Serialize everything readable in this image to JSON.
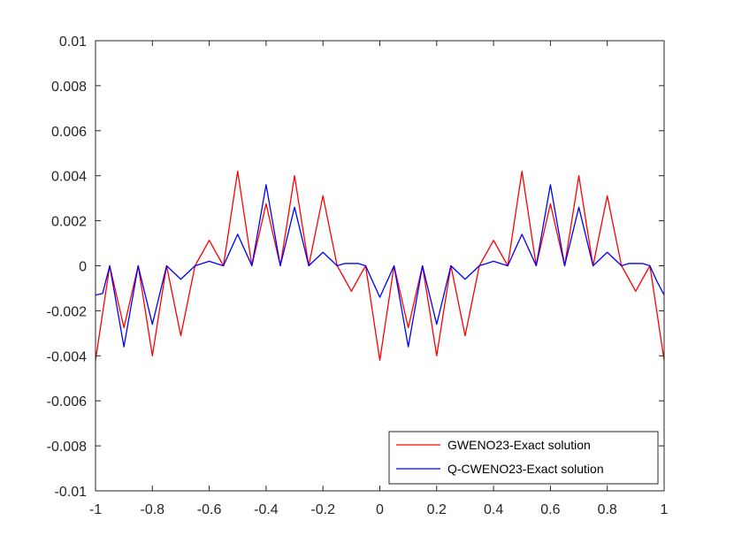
{
  "chart_data": {
    "type": "line",
    "title": "",
    "xlabel": "",
    "ylabel": "",
    "xlim": [
      -1,
      1
    ],
    "ylim": [
      -0.01,
      0.01
    ],
    "grid": false,
    "legend_position": "bottom-right",
    "x_ticks": [
      -1,
      -0.8,
      -0.6,
      -0.4,
      -0.2,
      0,
      0.2,
      0.4,
      0.6,
      0.8,
      1
    ],
    "x_tick_labels": [
      "-1",
      "-0.8",
      "-0.6",
      "-0.4",
      "-0.2",
      "0",
      "0.2",
      "0.4",
      "0.6",
      "0.8",
      "1"
    ],
    "y_ticks": [
      -0.01,
      -0.008,
      -0.006,
      -0.004,
      -0.002,
      0,
      0.002,
      0.004,
      0.006,
      0.008,
      0.01
    ],
    "y_tick_labels": [
      "-0.01",
      "-0.008",
      "-0.006",
      "-0.004",
      "-0.002",
      "0",
      "0.002",
      "0.004",
      "0.006",
      "0.008",
      "0.01"
    ],
    "series": [
      {
        "name": "GWENO23-Exact solution",
        "color": "#ff0000",
        "x": [
          -1.0,
          -0.975,
          -0.95,
          -0.925,
          -0.9,
          -0.875,
          -0.85,
          -0.825,
          -0.8,
          -0.775,
          -0.75,
          -0.725,
          -0.7,
          -0.675,
          -0.65,
          -0.625,
          -0.6,
          -0.575,
          -0.55,
          -0.525,
          -0.5,
          -0.475,
          -0.45,
          -0.425,
          -0.4,
          -0.375,
          -0.35,
          -0.325,
          -0.3,
          -0.275,
          -0.25,
          -0.225,
          -0.2,
          -0.175,
          -0.15,
          -0.125,
          -0.1,
          -0.075,
          -0.05,
          -0.025,
          0.0,
          0.025,
          0.05,
          0.075,
          0.1,
          0.125,
          0.15,
          0.175,
          0.2,
          0.225,
          0.25,
          0.275,
          0.3,
          0.325,
          0.35,
          0.375,
          0.4,
          0.425,
          0.45,
          0.475,
          0.5,
          0.525,
          0.55,
          0.575,
          0.6,
          0.625,
          0.65,
          0.675,
          0.7,
          0.725,
          0.75,
          0.775,
          0.8,
          0.825,
          0.85,
          0.875,
          0.9,
          0.925,
          0.95,
          0.975,
          1.0
        ],
        "y": [
          -0.0042,
          -0.0021,
          0.0,
          -0.00137,
          -0.00275,
          -0.00137,
          0.0,
          -0.00198,
          -0.004,
          -0.00198,
          0.0,
          -0.00155,
          -0.00311,
          -0.00155,
          0.0,
          0.00056,
          0.00113,
          0.00056,
          0.0,
          0.0021,
          0.0042,
          0.0021,
          0.0,
          0.00137,
          0.00275,
          0.00137,
          0.0,
          0.00198,
          0.004,
          0.00198,
          0.0,
          0.00155,
          0.00311,
          0.00155,
          0.0,
          -0.00056,
          -0.00113,
          -0.00056,
          0.0,
          -0.0021,
          -0.0042,
          -0.0021,
          0.0,
          -0.00137,
          -0.00275,
          -0.00137,
          0.0,
          -0.00198,
          -0.004,
          -0.00198,
          0.0,
          -0.00155,
          -0.00311,
          -0.00155,
          0.0,
          0.00056,
          0.00113,
          0.00056,
          0.0,
          0.0021,
          0.0042,
          0.0021,
          0.0,
          0.00137,
          0.00275,
          0.00137,
          0.0,
          0.00198,
          0.004,
          0.00198,
          0.0,
          0.00155,
          0.00311,
          0.00155,
          0.0,
          -0.00056,
          -0.00113,
          -0.00056,
          0.0,
          -0.0021,
          -0.0042
        ]
      },
      {
        "name": "Q-CWENO23-Exact solution",
        "color": "#0000ff",
        "x": [
          -1.0,
          -0.975,
          -0.95,
          -0.925,
          -0.9,
          -0.875,
          -0.85,
          -0.825,
          -0.8,
          -0.775,
          -0.75,
          -0.725,
          -0.7,
          -0.675,
          -0.65,
          -0.625,
          -0.6,
          -0.575,
          -0.55,
          -0.525,
          -0.5,
          -0.475,
          -0.45,
          -0.425,
          -0.4,
          -0.375,
          -0.35,
          -0.325,
          -0.3,
          -0.275,
          -0.25,
          -0.225,
          -0.2,
          -0.175,
          -0.15,
          -0.125,
          -0.1,
          -0.075,
          -0.05,
          -0.025,
          0.0,
          0.025,
          0.05,
          0.075,
          0.1,
          0.125,
          0.15,
          0.175,
          0.2,
          0.225,
          0.25,
          0.275,
          0.3,
          0.325,
          0.35,
          0.375,
          0.4,
          0.425,
          0.45,
          0.475,
          0.5,
          0.525,
          0.55,
          0.575,
          0.6,
          0.625,
          0.65,
          0.675,
          0.7,
          0.725,
          0.75,
          0.775,
          0.8,
          0.825,
          0.85,
          0.875,
          0.9,
          0.925,
          0.95,
          0.975,
          1.0
        ],
        "y": [
          -0.0013,
          -0.00123,
          0.0,
          -0.0018,
          -0.0036,
          -0.0018,
          0.0,
          -0.0013,
          -0.0026,
          -0.0013,
          0.0,
          -0.0003,
          -0.0006,
          -0.0003,
          0.0,
          0.0001,
          0.0002,
          0.0001,
          0.0,
          0.0007,
          0.0014,
          0.0007,
          0.0,
          0.0018,
          0.0036,
          0.0018,
          0.0,
          0.0013,
          0.0026,
          0.0013,
          0.0,
          0.0003,
          0.0006,
          0.0003,
          0.0,
          0.0001,
          0.0001,
          0.0001,
          0.0,
          -0.0007,
          -0.0014,
          -0.0007,
          0.0,
          -0.0018,
          -0.0036,
          -0.0018,
          0.0,
          -0.0013,
          -0.0026,
          -0.0013,
          0.0,
          -0.0003,
          -0.0006,
          -0.0003,
          0.0,
          0.0001,
          0.0002,
          0.0001,
          0.0,
          0.0007,
          0.0014,
          0.0007,
          0.0,
          0.0018,
          0.0036,
          0.0018,
          0.0,
          0.0013,
          0.0026,
          0.0013,
          0.0,
          0.0003,
          0.0006,
          0.0003,
          0.0,
          0.0001,
          0.0001,
          0.0001,
          0.0,
          -0.0007,
          -0.0013
        ]
      }
    ]
  }
}
